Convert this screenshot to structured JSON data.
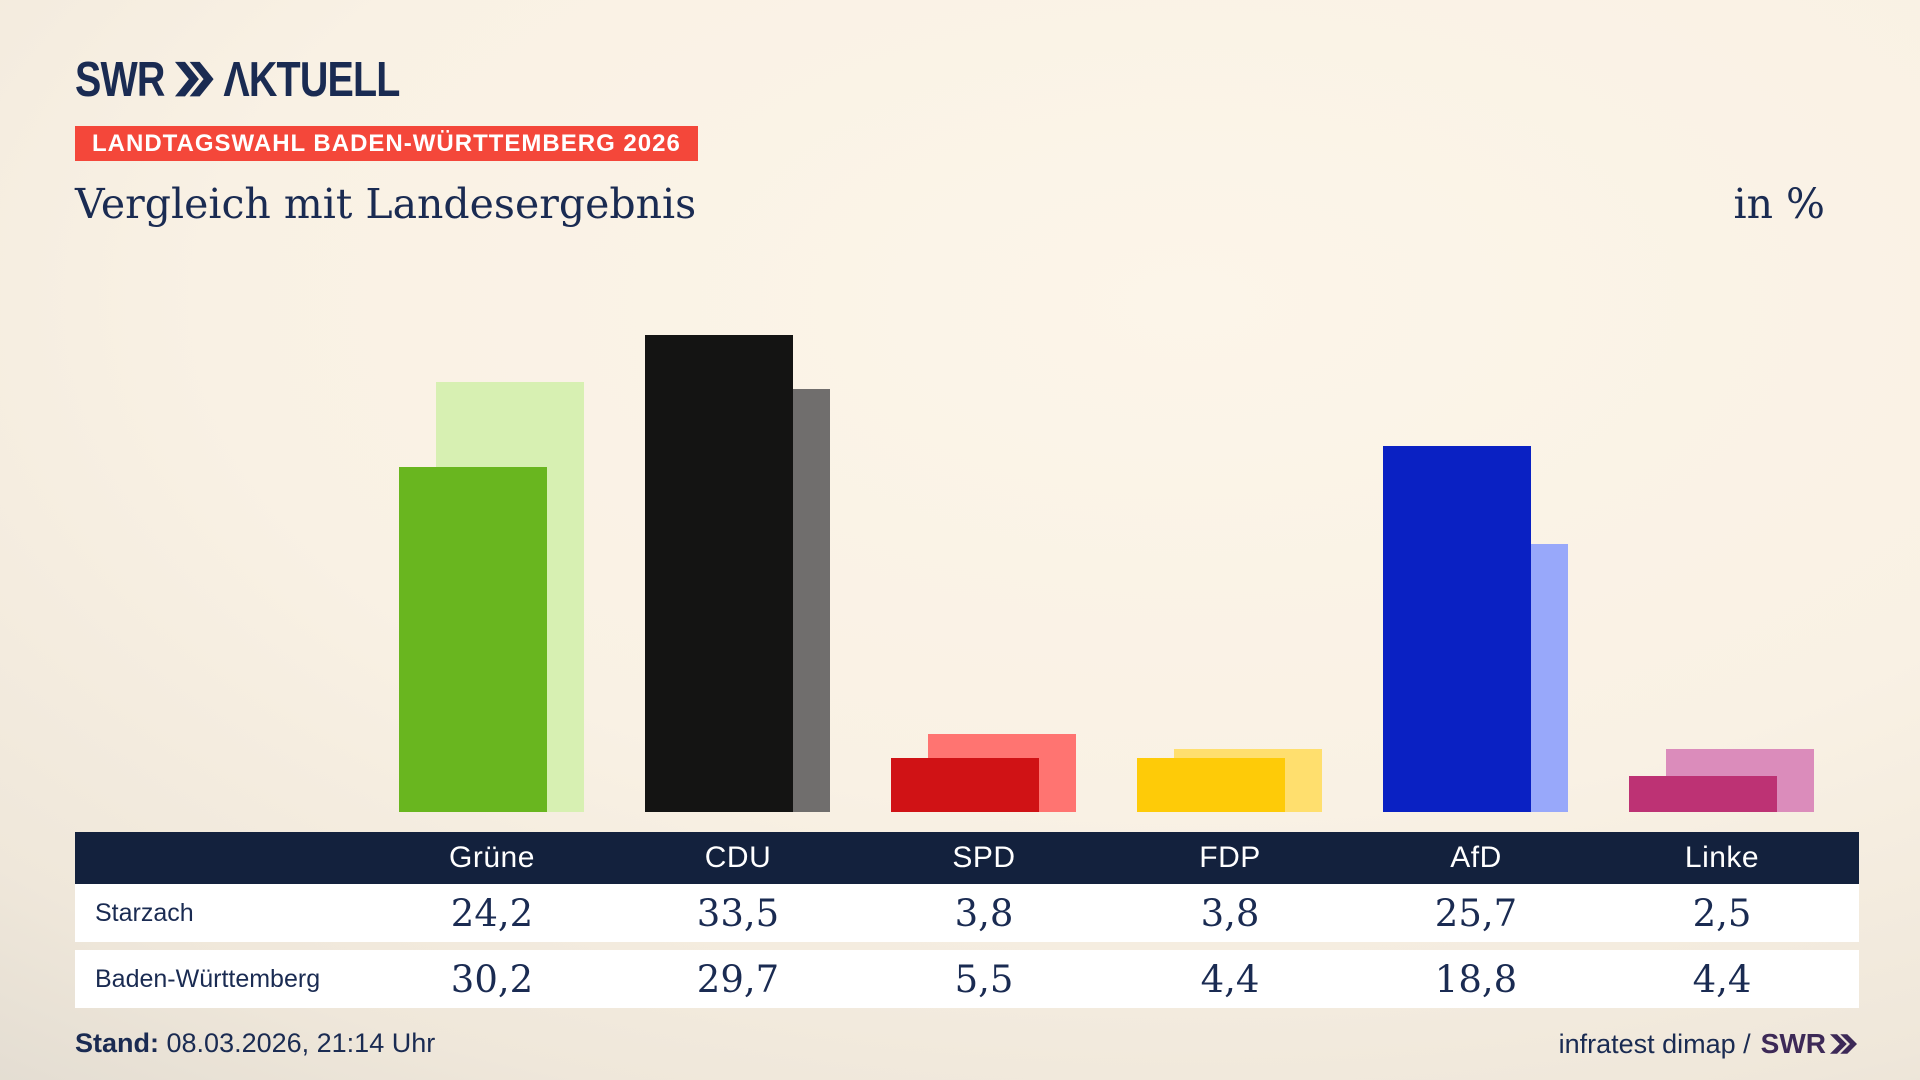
{
  "logo": {
    "brand": "SWR",
    "suffix": "ΛKTUELL"
  },
  "badge": "LANDTAGSWAHL BADEN-WÜRTTEMBERG 2026",
  "title": "Vergleich mit Landesergebnis",
  "unit_label": "in %",
  "colors": {
    "background_center": "#f9f1e4",
    "background_edge": "#cbc8c1",
    "navy_text": "#1a2b52",
    "table_header_bg": "#13213d",
    "badge_red": "#f4473a",
    "footer_brand_purple": "#3d2957"
  },
  "chart_data": {
    "type": "bar",
    "categories": [
      "Grüne",
      "CDU",
      "SPD",
      "FDP",
      "AfD",
      "Linke"
    ],
    "category_slugs": [
      "gruene",
      "cdu",
      "spd",
      "fdp",
      "afd",
      "linke"
    ],
    "series": [
      {
        "name": "Starzach",
        "values": [
          24.2,
          33.5,
          3.8,
          3.8,
          25.7,
          2.5
        ]
      },
      {
        "name": "Baden-Württemberg",
        "values": [
          30.2,
          29.7,
          5.5,
          4.4,
          18.8,
          4.4
        ]
      }
    ],
    "series_colors": {
      "front": [
        "#69b61f",
        "#141413",
        "#d01215",
        "#fecb08",
        "#0a21c3",
        "#bd3274"
      ],
      "back": [
        "#d7f0b2",
        "#706e6d",
        "#ff7471",
        "#ffdf6e",
        "#98a8fa",
        "#db8cbb"
      ]
    },
    "title": "Vergleich mit Landesergebnis",
    "xlabel": "",
    "ylabel": "in %",
    "ylim": [
      0,
      35
    ],
    "grid": false,
    "legend_position": "table-below"
  },
  "table": {
    "columns": [
      "Grüne",
      "CDU",
      "SPD",
      "FDP",
      "AfD",
      "Linke"
    ],
    "rows": [
      {
        "label": "Starzach",
        "values": [
          "24,2",
          "33,5",
          "3,8",
          "3,8",
          "25,7",
          "2,5"
        ]
      },
      {
        "label": "Baden-Württemberg",
        "values": [
          "30,2",
          "29,7",
          "5,5",
          "4,4",
          "18,8",
          "4,4"
        ]
      }
    ]
  },
  "footer": {
    "stand_label": "Stand:",
    "stand_value": "08.03.2026, 21:14 Uhr",
    "source": "infratest dimap /",
    "source_brand": "SWR"
  }
}
